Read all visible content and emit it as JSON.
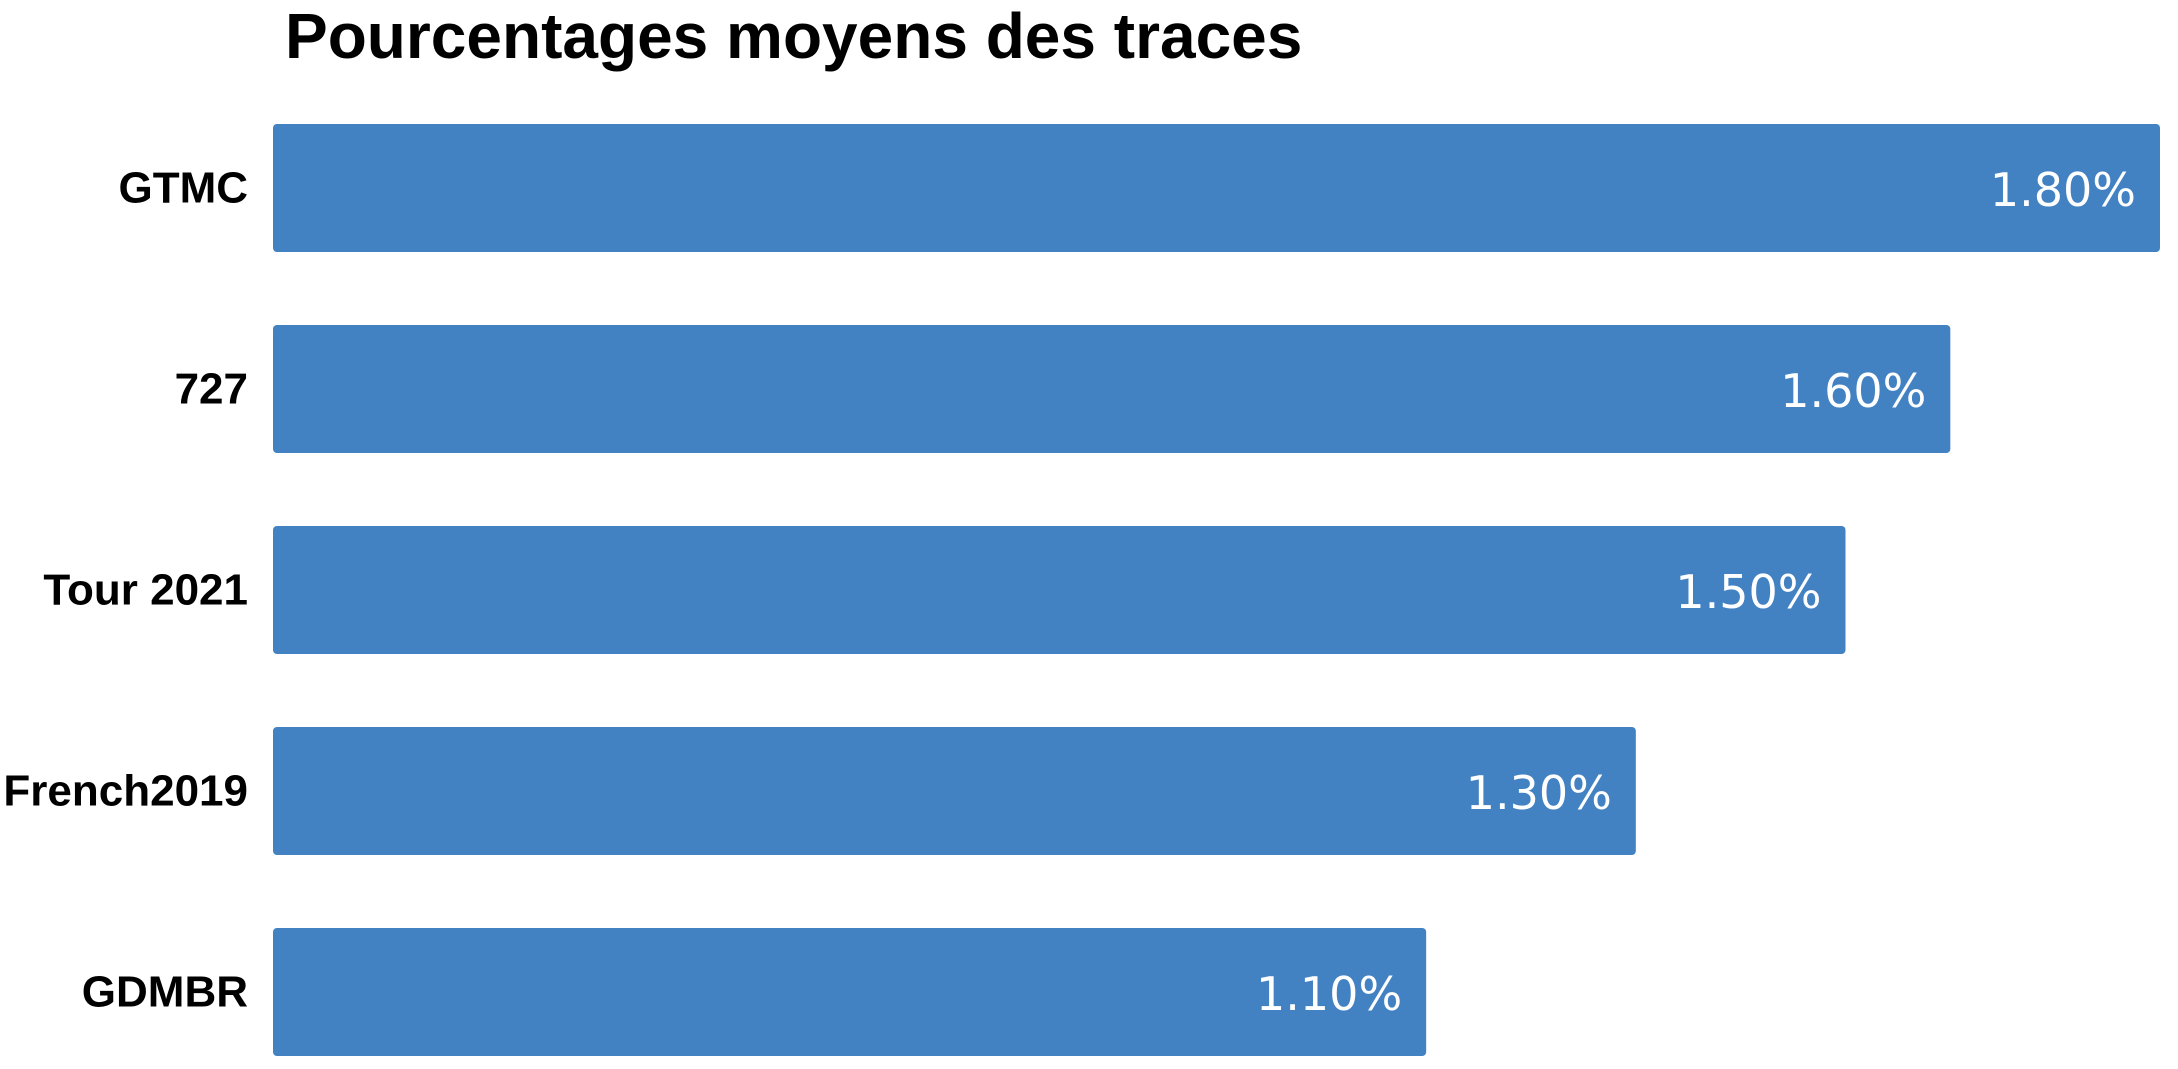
{
  "chart_data": {
    "type": "bar",
    "orientation": "horizontal",
    "title": "Pourcentages moyens des traces",
    "xlabel": "",
    "ylabel": "",
    "categories": [
      "GTMC",
      "727",
      "Tour 2021",
      "French2019",
      "GDMBR"
    ],
    "values": [
      1.8,
      1.6,
      1.5,
      1.3,
      1.1
    ],
    "value_labels": [
      "1.80%",
      "1.60%",
      "1.50%",
      "1.30%",
      "1.10%"
    ],
    "xlim": [
      0,
      1.8
    ],
    "grid": false,
    "legend": "none",
    "bar_color": "#4281C2"
  }
}
